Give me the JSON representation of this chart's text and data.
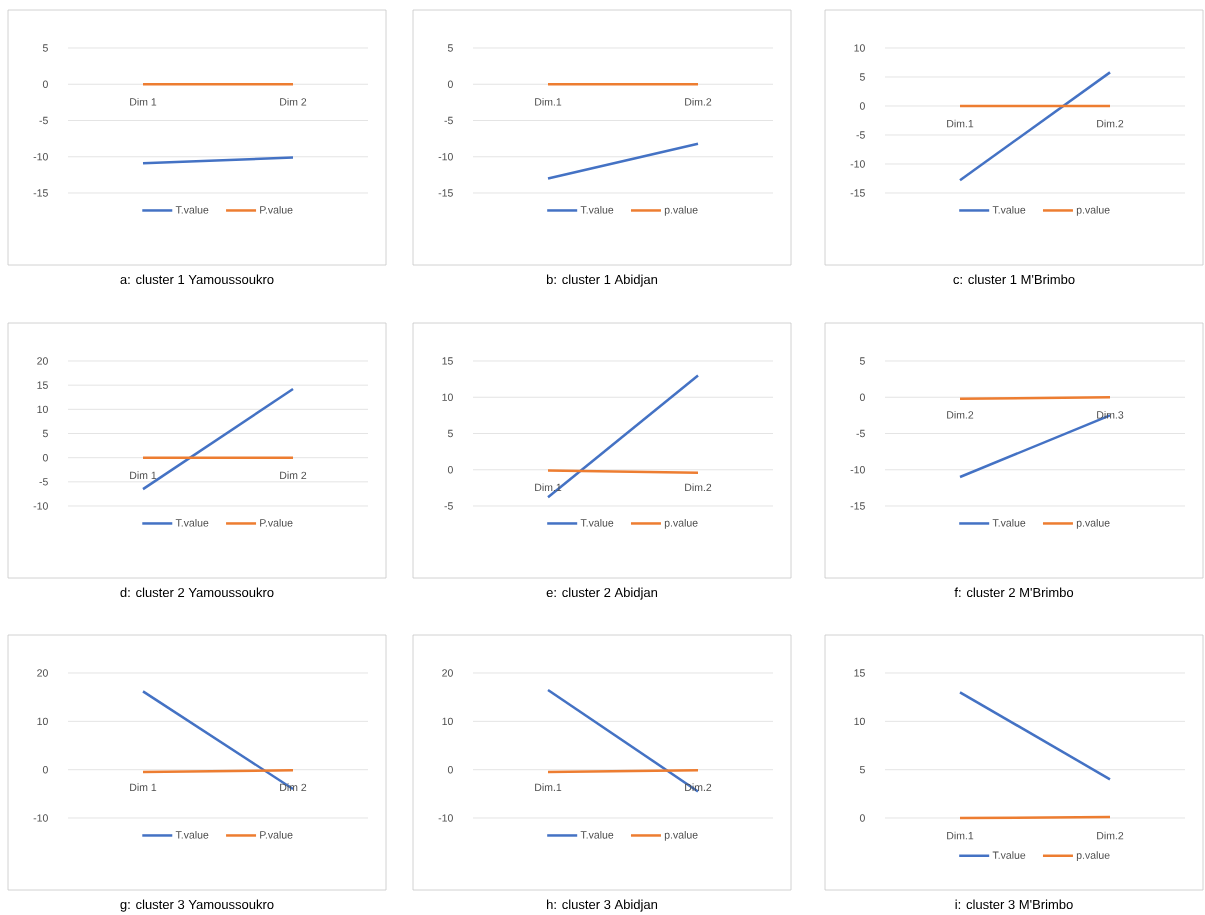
{
  "chart_data": [
    {
      "type": "line",
      "title": "a: cluster 1 Yamoussoukro",
      "categories": [
        "Dim 1",
        "Dim 2"
      ],
      "ylim": [
        -15,
        5
      ],
      "yticks": [
        -15,
        -10,
        -5,
        0,
        5
      ],
      "grid": "y",
      "legend": "bottom",
      "series": [
        {
          "name": "T.value",
          "color": "#4472c4",
          "values": [
            -10.9,
            -10.1
          ]
        },
        {
          "name": "P.value",
          "color": "#ed7d31",
          "values": [
            0,
            0
          ]
        }
      ]
    },
    {
      "type": "line",
      "title": "b: cluster 1 Abidjan",
      "categories": [
        "Dim.1",
        "Dim.2"
      ],
      "ylim": [
        -15,
        5
      ],
      "yticks": [
        -15,
        -10,
        -5,
        0,
        5
      ],
      "grid": "y",
      "legend": "bottom",
      "series": [
        {
          "name": "T.value",
          "color": "#4472c4",
          "values": [
            -13,
            -8.2
          ]
        },
        {
          "name": "p.value",
          "color": "#ed7d31",
          "values": [
            0,
            0
          ]
        }
      ]
    },
    {
      "type": "line",
      "title": "c: cluster 1 M'Brimbo",
      "categories": [
        "Dim.1",
        "Dim.2"
      ],
      "ylim": [
        -15,
        10
      ],
      "yticks": [
        -15,
        -10,
        -5,
        0,
        5,
        10
      ],
      "grid": "y",
      "legend": "bottom",
      "series": [
        {
          "name": "T.value",
          "color": "#4472c4",
          "values": [
            -12.8,
            5.8
          ]
        },
        {
          "name": "p.value",
          "color": "#ed7d31",
          "values": [
            0,
            0
          ]
        }
      ]
    },
    {
      "type": "line",
      "title": "d: cluster 2 Yamoussoukro",
      "categories": [
        "Dim 1",
        "Dim 2"
      ],
      "ylim": [
        -10,
        20
      ],
      "yticks": [
        -10,
        -5,
        0,
        5,
        10,
        15,
        20
      ],
      "grid": "y",
      "legend": "bottom",
      "series": [
        {
          "name": "T.value",
          "color": "#4472c4",
          "values": [
            -6.5,
            14.2
          ]
        },
        {
          "name": "P.value",
          "color": "#ed7d31",
          "values": [
            0,
            0
          ]
        }
      ]
    },
    {
      "type": "line",
      "title": "e: cluster 2 Abidjan",
      "categories": [
        "Dim.1",
        "Dim.2"
      ],
      "ylim": [
        -5,
        15
      ],
      "yticks": [
        -5,
        0,
        5,
        10,
        15
      ],
      "grid": "y",
      "legend": "bottom",
      "series": [
        {
          "name": "T.value",
          "color": "#4472c4",
          "values": [
            -3.8,
            13
          ]
        },
        {
          "name": "p.value",
          "color": "#ed7d31",
          "values": [
            -0.1,
            -0.4
          ]
        }
      ]
    },
    {
      "type": "line",
      "title": "f: cluster 2 M'Brimbo",
      "categories": [
        "Dim.2",
        "Dim.3"
      ],
      "ylim": [
        -15,
        5
      ],
      "yticks": [
        -15,
        -10,
        -5,
        0,
        5
      ],
      "grid": "y",
      "legend": "bottom",
      "series": [
        {
          "name": "T.value",
          "color": "#4472c4",
          "values": [
            -11,
            -2.5
          ]
        },
        {
          "name": "p.value",
          "color": "#ed7d31",
          "values": [
            -0.2,
            0
          ]
        }
      ]
    },
    {
      "type": "line",
      "title": "g: cluster 3 Yamoussoukro",
      "categories": [
        "Dim 1",
        "Dim 2"
      ],
      "ylim": [
        -10,
        20
      ],
      "yticks": [
        -10,
        0,
        10,
        20
      ],
      "grid": "y",
      "legend": "bottom",
      "series": [
        {
          "name": "T.value",
          "color": "#4472c4",
          "values": [
            16.2,
            -4
          ]
        },
        {
          "name": "P.value",
          "color": "#ed7d31",
          "values": [
            -0.5,
            -0.1
          ]
        }
      ]
    },
    {
      "type": "line",
      "title": "h: cluster 3 Abidjan",
      "categories": [
        "Dim.1",
        "Dim.2"
      ],
      "ylim": [
        -10,
        20
      ],
      "yticks": [
        -10,
        0,
        10,
        20
      ],
      "grid": "y",
      "legend": "bottom",
      "series": [
        {
          "name": "T.value",
          "color": "#4472c4",
          "values": [
            16.5,
            -4.5
          ]
        },
        {
          "name": "p.value",
          "color": "#ed7d31",
          "values": [
            -0.5,
            -0.1
          ]
        }
      ]
    },
    {
      "type": "line",
      "title": "i: cluster 3 M'Brimbo",
      "categories": [
        "Dim.1",
        "Dim.2"
      ],
      "ylim": [
        0,
        15
      ],
      "yticks": [
        0,
        5,
        10,
        15
      ],
      "grid": "y",
      "legend": "bottom",
      "series": [
        {
          "name": "T.value",
          "color": "#4472c4",
          "values": [
            13,
            4
          ]
        },
        {
          "name": "p.value",
          "color": "#ed7d31",
          "values": [
            0,
            0.1
          ]
        }
      ]
    }
  ]
}
